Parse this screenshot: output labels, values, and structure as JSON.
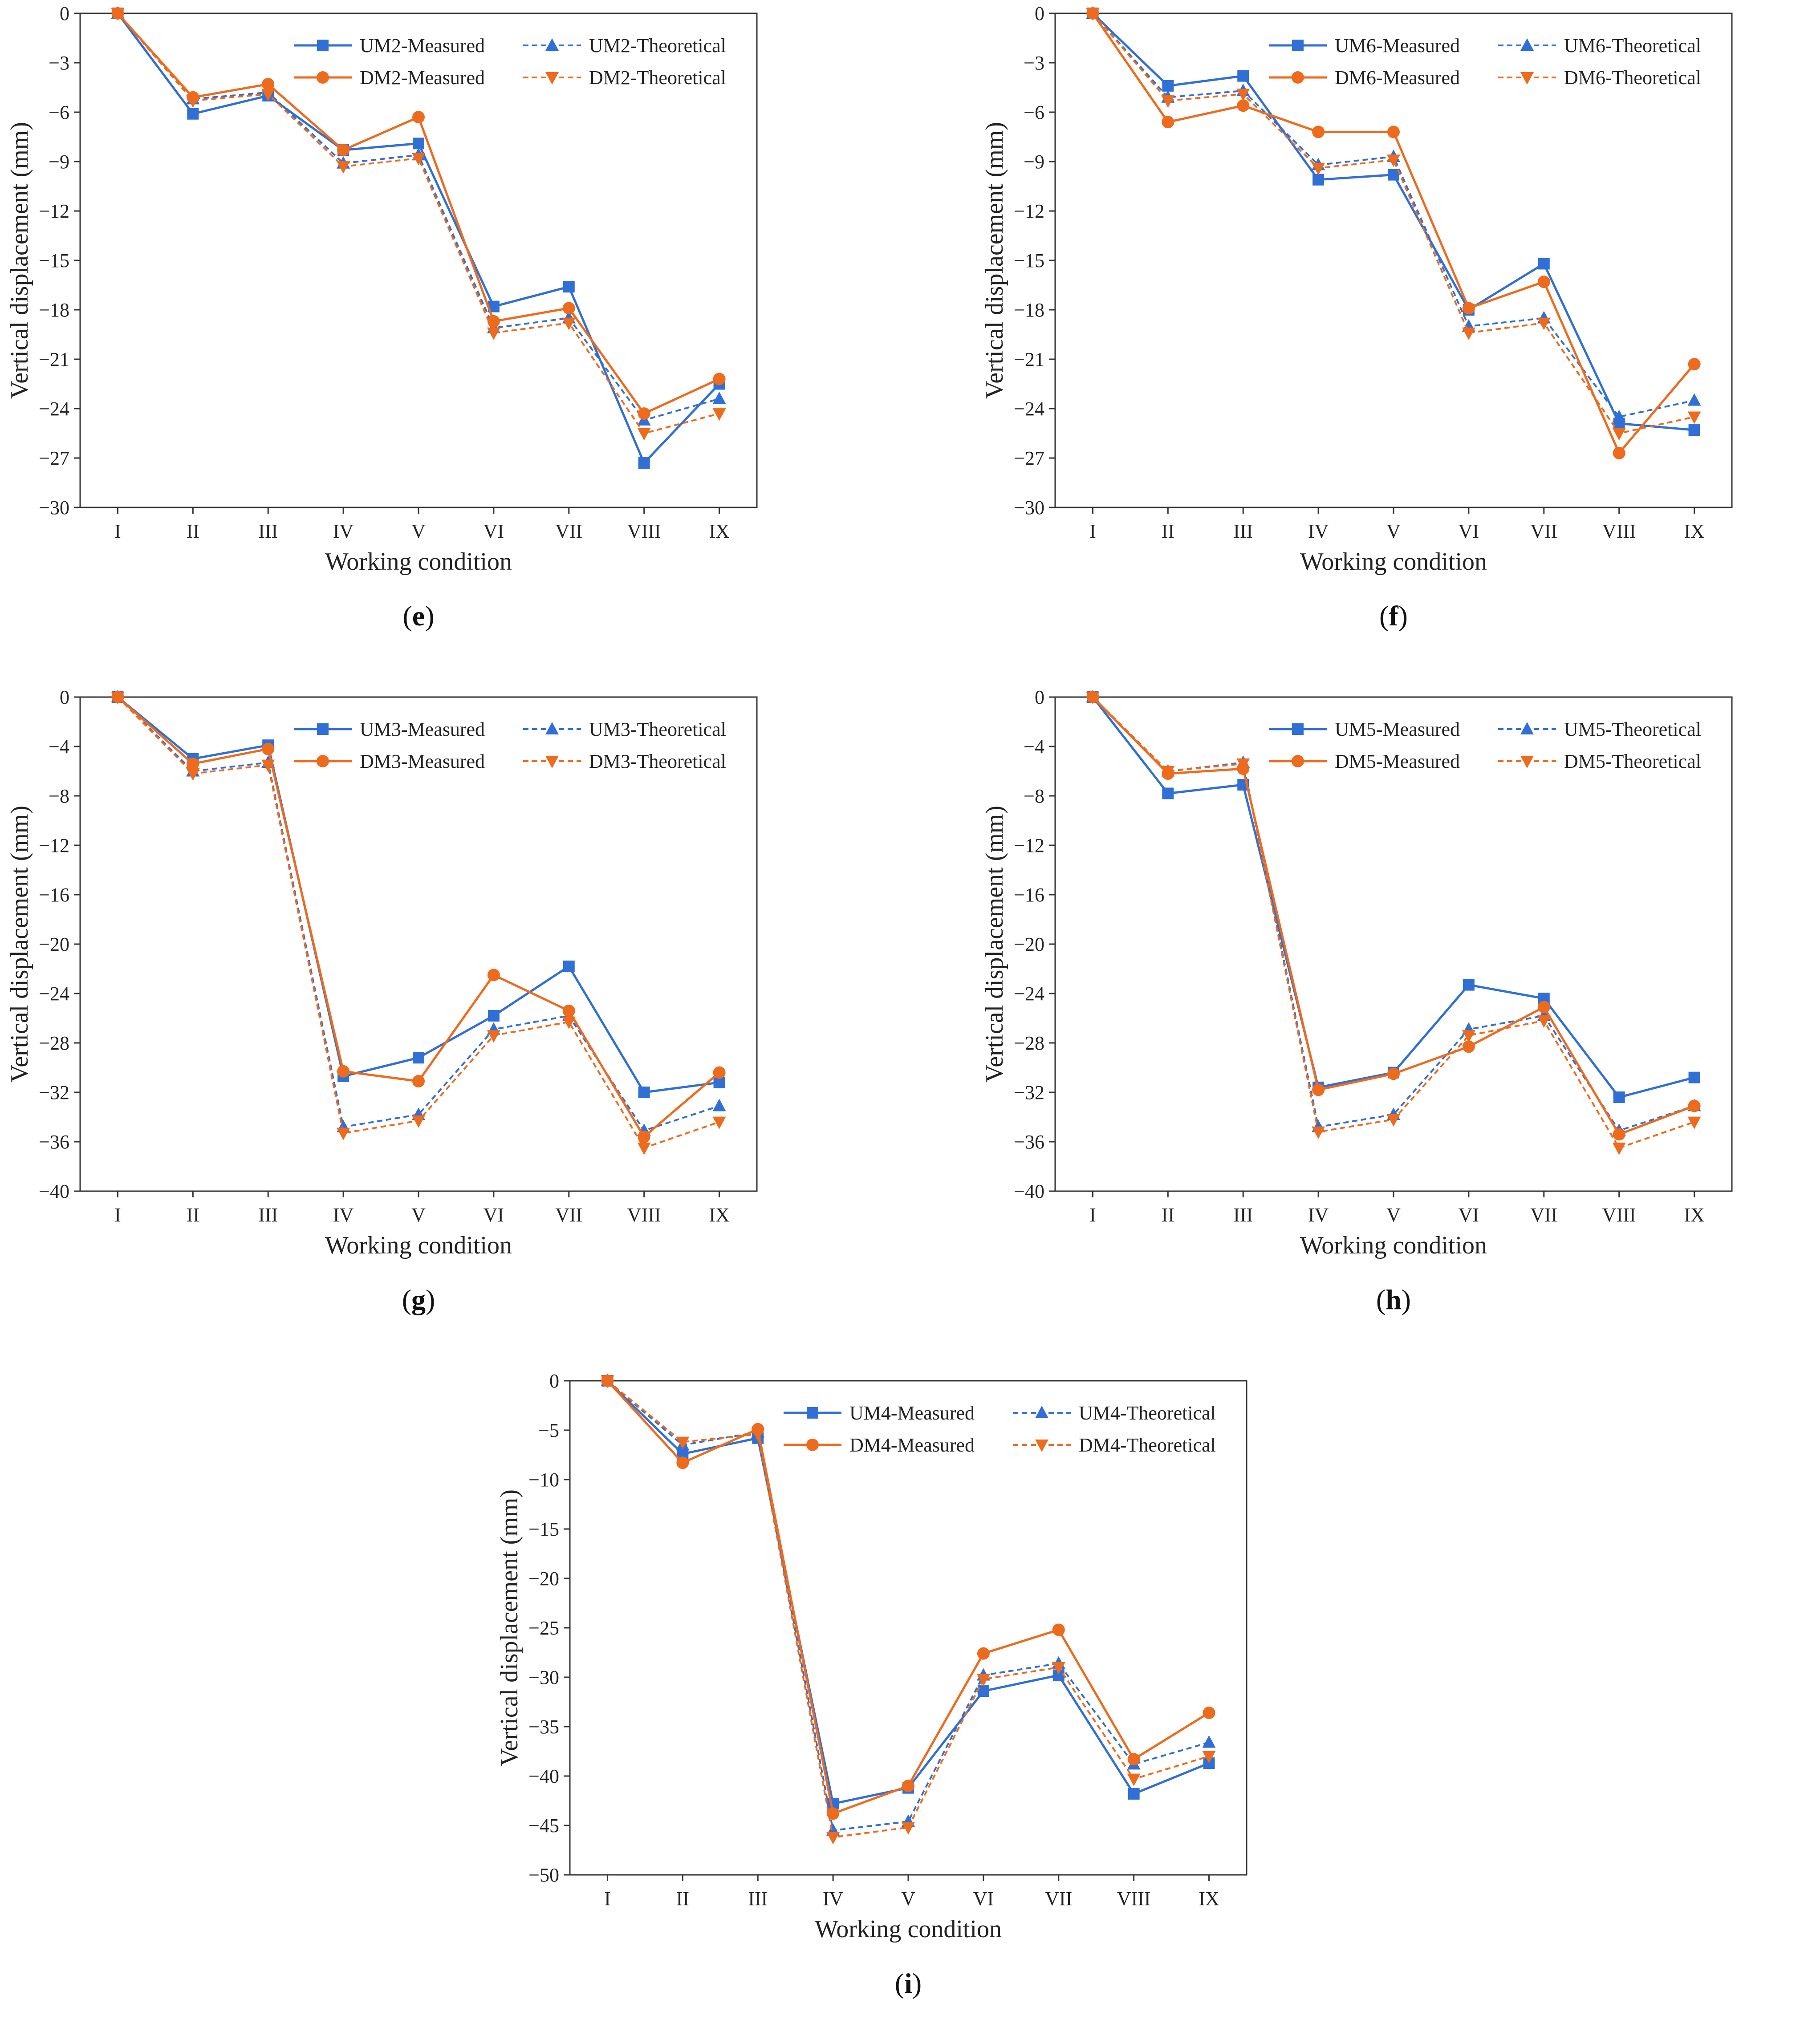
{
  "colors": {
    "blue": "#2f6fd6",
    "orange": "#ee6a1c",
    "axis": "#333333"
  },
  "chart_data": [
    {
      "id": "e",
      "panel_label": "e",
      "type": "line",
      "categories": [
        "I",
        "II",
        "III",
        "IV",
        "V",
        "VI",
        "VII",
        "VIII",
        "IX"
      ],
      "xlabel": "Working condition",
      "ylabel": "Vertical displacement (mm)",
      "ylim": [
        -30,
        0
      ],
      "yticks": [
        0,
        -3,
        -6,
        -9,
        -12,
        -15,
        -18,
        -21,
        -24,
        -27,
        -30
      ],
      "series": [
        {
          "name": "UM2-Measured",
          "color": "blue",
          "style": "solid",
          "marker": "square",
          "values": [
            0,
            -6.1,
            -5.0,
            -8.3,
            -7.9,
            -17.8,
            -16.6,
            -27.3,
            -22.5
          ]
        },
        {
          "name": "UM2-Theoretical",
          "color": "blue",
          "style": "dashed",
          "marker": "triangle",
          "values": [
            0,
            -5.2,
            -4.8,
            -9.1,
            -8.6,
            -19.1,
            -18.5,
            -24.7,
            -23.4
          ]
        },
        {
          "name": "DM2-Measured",
          "color": "orange",
          "style": "solid",
          "marker": "circle",
          "values": [
            0,
            -5.1,
            -4.3,
            -8.3,
            -6.3,
            -18.7,
            -17.9,
            -24.3,
            -22.2
          ]
        },
        {
          "name": "DM2-Theoretical",
          "color": "orange",
          "style": "dashed",
          "marker": "tri-down",
          "values": [
            0,
            -5.3,
            -4.9,
            -9.3,
            -8.8,
            -19.4,
            -18.8,
            -25.5,
            -24.3
          ]
        }
      ]
    },
    {
      "id": "f",
      "panel_label": "f",
      "type": "line",
      "categories": [
        "I",
        "II",
        "III",
        "IV",
        "V",
        "VI",
        "VII",
        "VIII",
        "IX"
      ],
      "xlabel": "Working condition",
      "ylabel": "Vertical displacement (mm)",
      "ylim": [
        -30,
        0
      ],
      "yticks": [
        0,
        -3,
        -6,
        -9,
        -12,
        -15,
        -18,
        -21,
        -24,
        -27,
        -30
      ],
      "series": [
        {
          "name": "UM6-Measured",
          "color": "blue",
          "style": "solid",
          "marker": "square",
          "values": [
            0,
            -4.4,
            -3.8,
            -10.1,
            -9.8,
            -18.0,
            -15.2,
            -24.9,
            -25.3
          ]
        },
        {
          "name": "UM6-Theoretical",
          "color": "blue",
          "style": "dashed",
          "marker": "triangle",
          "values": [
            0,
            -5.1,
            -4.7,
            -9.2,
            -8.7,
            -19.0,
            -18.5,
            -24.5,
            -23.5
          ]
        },
        {
          "name": "DM6-Measured",
          "color": "orange",
          "style": "solid",
          "marker": "circle",
          "values": [
            0,
            -6.6,
            -5.6,
            -7.2,
            -7.2,
            -17.9,
            -16.3,
            -26.7,
            -21.3
          ]
        },
        {
          "name": "DM6-Theoretical",
          "color": "orange",
          "style": "dashed",
          "marker": "tri-down",
          "values": [
            0,
            -5.3,
            -4.9,
            -9.4,
            -8.9,
            -19.4,
            -18.8,
            -25.5,
            -24.5
          ]
        }
      ]
    },
    {
      "id": "g",
      "panel_label": "g",
      "type": "line",
      "categories": [
        "I",
        "II",
        "III",
        "IV",
        "V",
        "VI",
        "VII",
        "VIII",
        "IX"
      ],
      "xlabel": "Working condition",
      "ylabel": "Vertical displacement (mm)",
      "ylim": [
        -40,
        0
      ],
      "yticks": [
        0,
        -4,
        -8,
        -12,
        -16,
        -20,
        -24,
        -28,
        -32,
        -36,
        -40
      ],
      "series": [
        {
          "name": "UM3-Measured",
          "color": "blue",
          "style": "solid",
          "marker": "square",
          "values": [
            0,
            -5.0,
            -3.9,
            -30.7,
            -29.2,
            -25.8,
            -21.8,
            -32.0,
            -31.2
          ]
        },
        {
          "name": "UM3-Theoretical",
          "color": "blue",
          "style": "dashed",
          "marker": "triangle",
          "values": [
            0,
            -6.0,
            -5.3,
            -34.8,
            -33.8,
            -26.9,
            -25.8,
            -35.1,
            -33.1
          ]
        },
        {
          "name": "DM3-Measured",
          "color": "orange",
          "style": "solid",
          "marker": "circle",
          "values": [
            0,
            -5.4,
            -4.2,
            -30.3,
            -31.1,
            -22.5,
            -25.4,
            -35.6,
            -30.4
          ]
        },
        {
          "name": "DM3-Theoretical",
          "color": "orange",
          "style": "dashed",
          "marker": "tri-down",
          "values": [
            0,
            -6.2,
            -5.5,
            -35.3,
            -34.3,
            -27.4,
            -26.3,
            -36.5,
            -34.4
          ]
        }
      ]
    },
    {
      "id": "h",
      "panel_label": "h",
      "type": "line",
      "categories": [
        "I",
        "II",
        "III",
        "IV",
        "V",
        "VI",
        "VII",
        "VIII",
        "IX"
      ],
      "xlabel": "Working condition",
      "ylabel": "Vertical displacement (mm)",
      "ylim": [
        -40,
        0
      ],
      "yticks": [
        0,
        -4,
        -8,
        -12,
        -16,
        -20,
        -24,
        -28,
        -32,
        -36,
        -40
      ],
      "series": [
        {
          "name": "UM5-Measured",
          "color": "blue",
          "style": "solid",
          "marker": "square",
          "values": [
            0,
            -7.8,
            -7.1,
            -31.6,
            -30.4,
            -23.3,
            -24.4,
            -32.4,
            -30.8
          ]
        },
        {
          "name": "UM5-Theoretical",
          "color": "blue",
          "style": "dashed",
          "marker": "triangle",
          "values": [
            0,
            -6.0,
            -5.3,
            -34.8,
            -33.8,
            -26.9,
            -25.8,
            -35.1,
            -33.1
          ]
        },
        {
          "name": "DM5-Measured",
          "color": "orange",
          "style": "solid",
          "marker": "circle",
          "values": [
            0,
            -6.2,
            -5.8,
            -31.8,
            -30.5,
            -28.3,
            -25.1,
            -35.4,
            -33.1
          ]
        },
        {
          "name": "DM5-Theoretical",
          "color": "orange",
          "style": "dashed",
          "marker": "tri-down",
          "values": [
            0,
            -6.0,
            -5.4,
            -35.2,
            -34.2,
            -27.4,
            -26.2,
            -36.5,
            -34.4
          ]
        }
      ]
    },
    {
      "id": "i",
      "panel_label": "i",
      "type": "line",
      "categories": [
        "I",
        "II",
        "III",
        "IV",
        "V",
        "VI",
        "VII",
        "VIII",
        "IX"
      ],
      "xlabel": "Working condition",
      "ylabel": "Vertical displacement (mm)",
      "ylim": [
        -50,
        0
      ],
      "yticks": [
        0,
        -5,
        -10,
        -15,
        -20,
        -25,
        -30,
        -35,
        -40,
        -45,
        -50
      ],
      "series": [
        {
          "name": "UM4-Measured",
          "color": "blue",
          "style": "solid",
          "marker": "square",
          "values": [
            0,
            -7.4,
            -5.8,
            -42.8,
            -41.2,
            -31.4,
            -29.8,
            -41.8,
            -38.7
          ]
        },
        {
          "name": "UM4-Theoretical",
          "color": "blue",
          "style": "dashed",
          "marker": "triangle",
          "values": [
            0,
            -6.5,
            -5.2,
            -45.5,
            -44.6,
            -29.8,
            -28.6,
            -38.8,
            -36.6
          ]
        },
        {
          "name": "DM4-Measured",
          "color": "orange",
          "style": "solid",
          "marker": "circle",
          "values": [
            0,
            -8.3,
            -4.9,
            -43.8,
            -41.0,
            -27.6,
            -25.2,
            -38.3,
            -33.6
          ]
        },
        {
          "name": "DM4-Theoretical",
          "color": "orange",
          "style": "dashed",
          "marker": "tri-down",
          "values": [
            0,
            -6.2,
            -5.4,
            -46.2,
            -45.2,
            -30.2,
            -29.0,
            -40.3,
            -38.0
          ]
        }
      ]
    }
  ]
}
